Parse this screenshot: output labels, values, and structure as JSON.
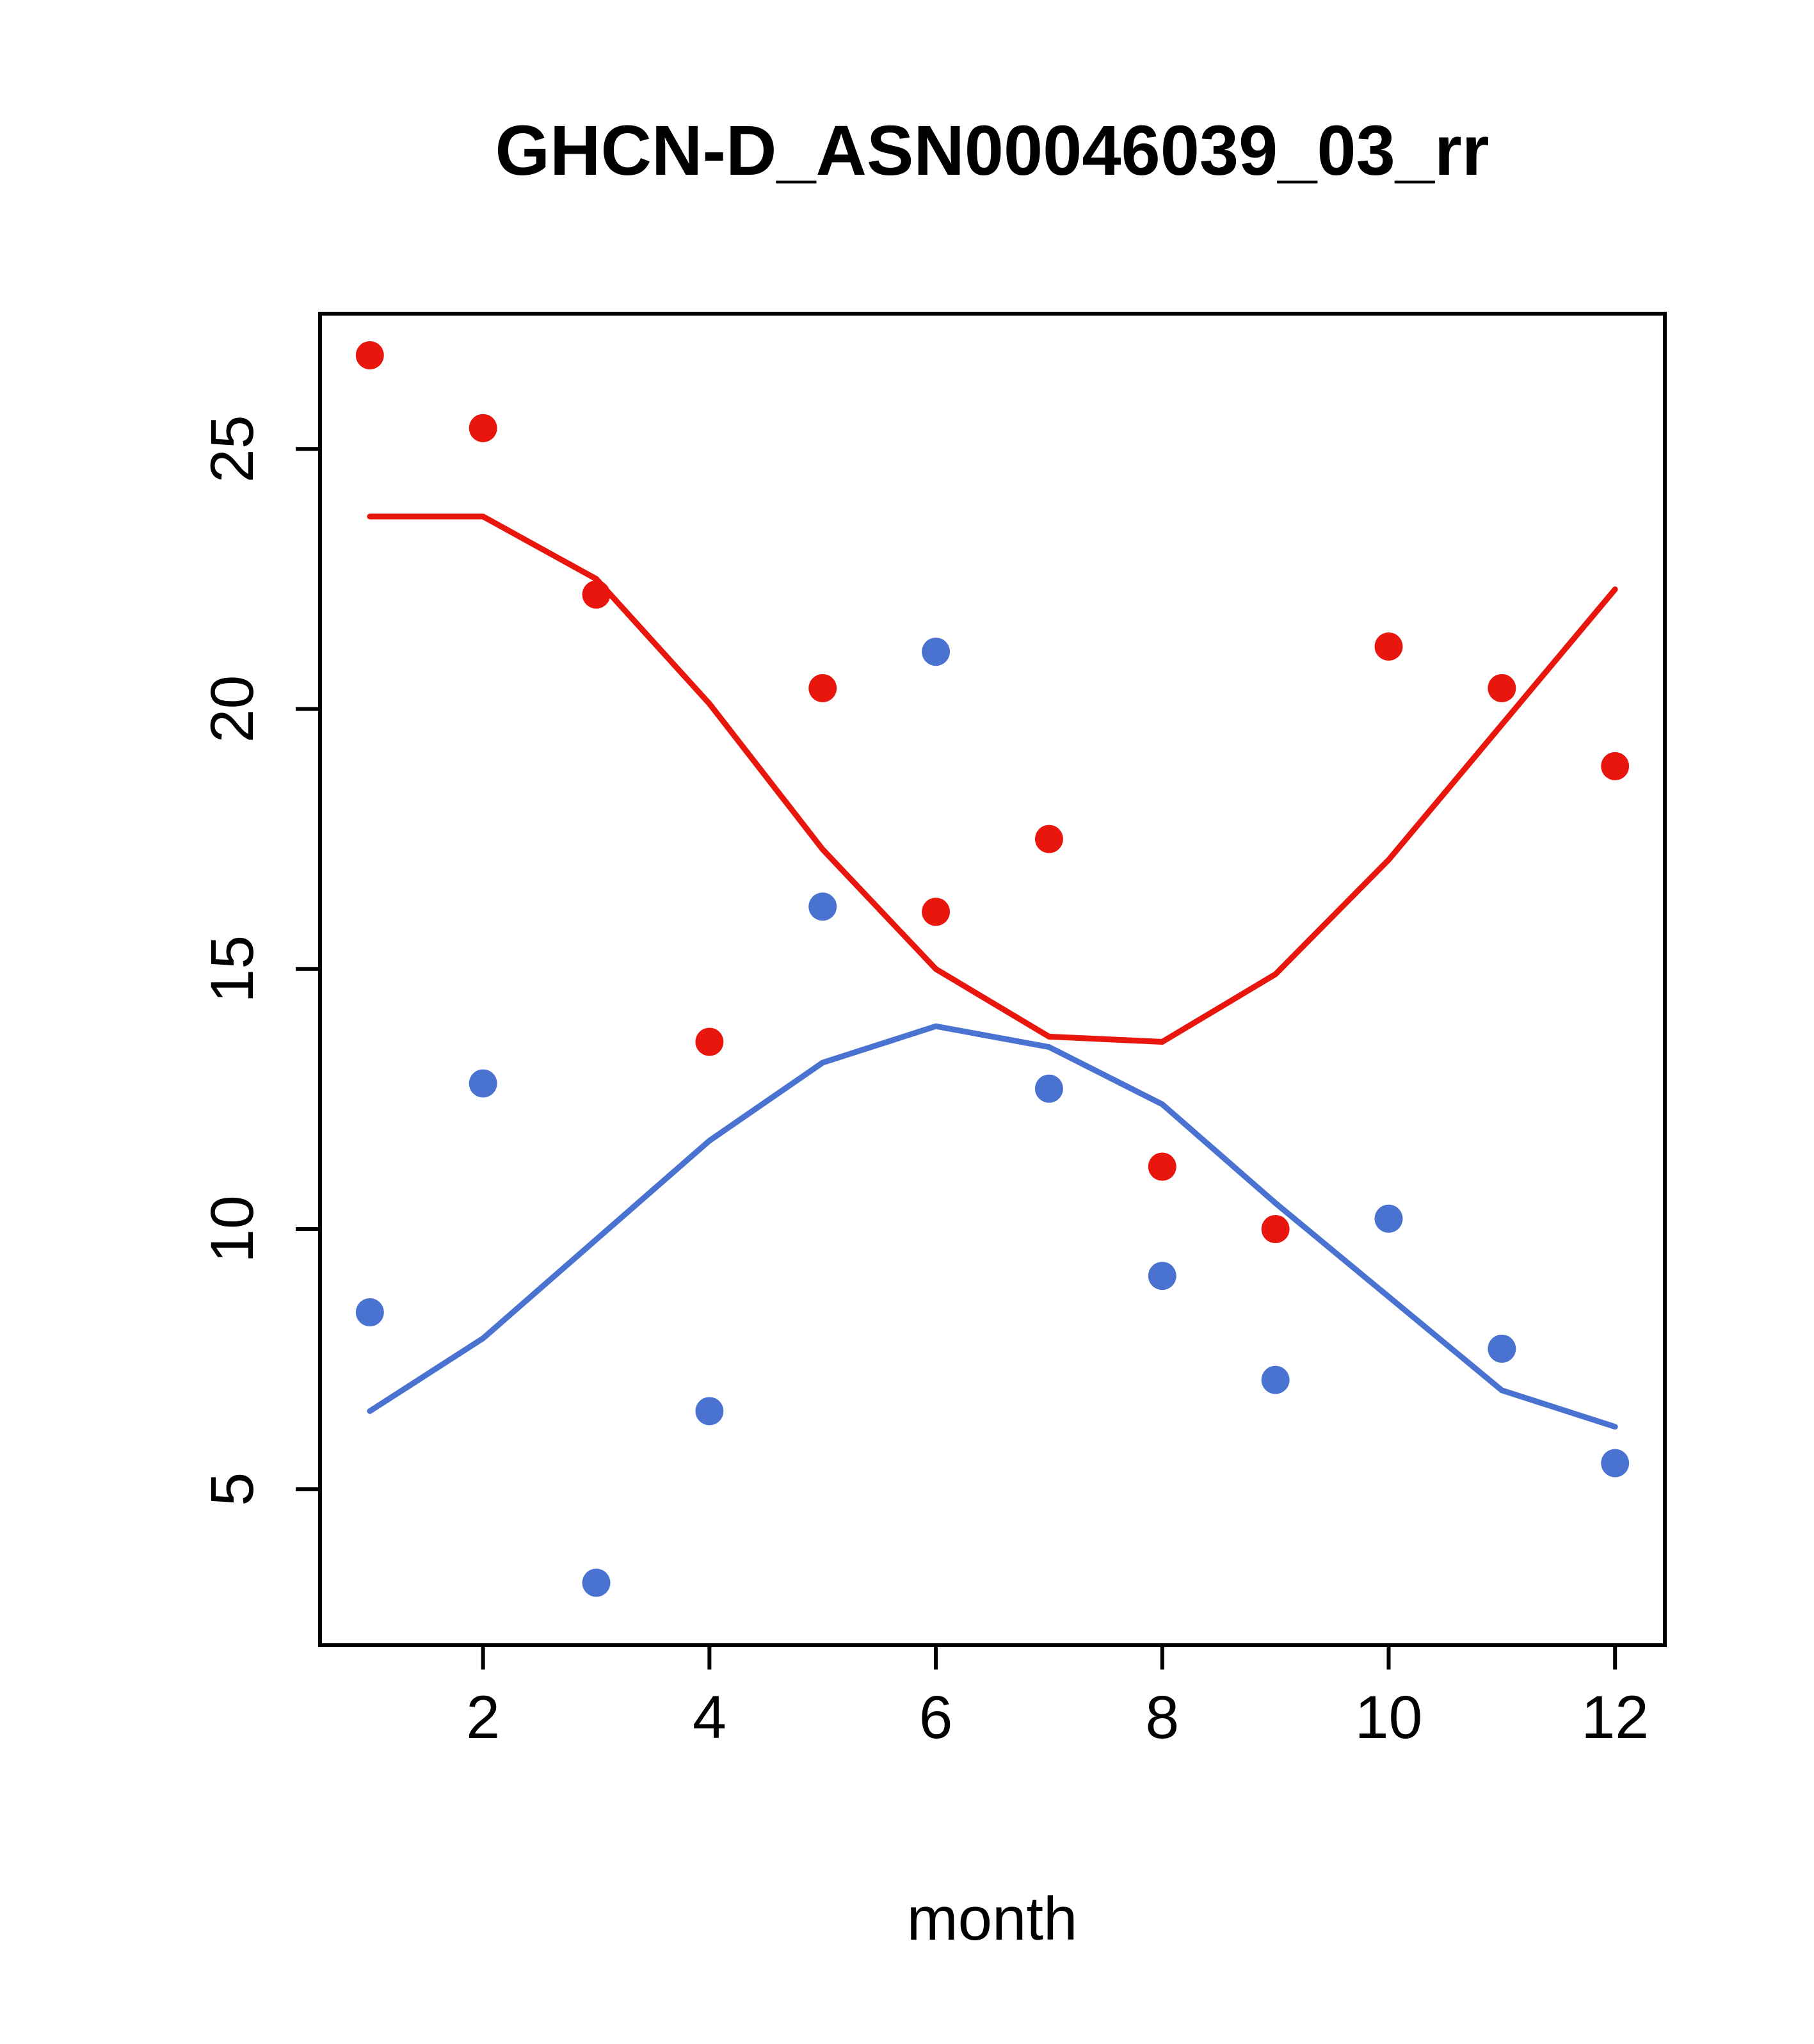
{
  "chart_data": {
    "type": "scatter",
    "title": "GHCN-D_ASN00046039_03_rr",
    "xlabel": "month",
    "ylabel": "",
    "grid": false,
    "legend": null,
    "xlim": [
      0.56,
      12.44
    ],
    "ylim": [
      2.0,
      27.6
    ],
    "x_ticks": [
      2,
      4,
      6,
      8,
      10,
      12
    ],
    "y_ticks": [
      5,
      10,
      15,
      20,
      25
    ],
    "x": [
      1,
      2,
      3,
      4,
      5,
      6,
      7,
      8,
      9,
      10,
      11,
      12
    ],
    "series": [
      {
        "name": "red-points",
        "kind": "scatter",
        "color": "#e8160c",
        "values": [
          26.8,
          25.4,
          22.2,
          13.6,
          20.4,
          16.1,
          17.5,
          11.2,
          10.0,
          21.2,
          20.4,
          18.9
        ]
      },
      {
        "name": "blue-points",
        "kind": "scatter",
        "color": "#4a72d1",
        "values": [
          8.4,
          12.8,
          3.2,
          6.5,
          16.2,
          21.1,
          12.7,
          9.1,
          7.1,
          10.2,
          7.7,
          5.5
        ]
      },
      {
        "name": "red-smooth-line",
        "kind": "line",
        "color": "#e8160c",
        "values": [
          23.7,
          23.7,
          22.5,
          20.1,
          17.3,
          15.0,
          13.7,
          13.6,
          14.9,
          17.1,
          19.7,
          22.3
        ]
      },
      {
        "name": "blue-smooth-line",
        "kind": "line",
        "color": "#4a72d1",
        "values": [
          6.5,
          7.9,
          9.8,
          11.7,
          13.2,
          13.9,
          13.5,
          12.4,
          10.5,
          8.7,
          6.9,
          6.2
        ]
      }
    ]
  }
}
